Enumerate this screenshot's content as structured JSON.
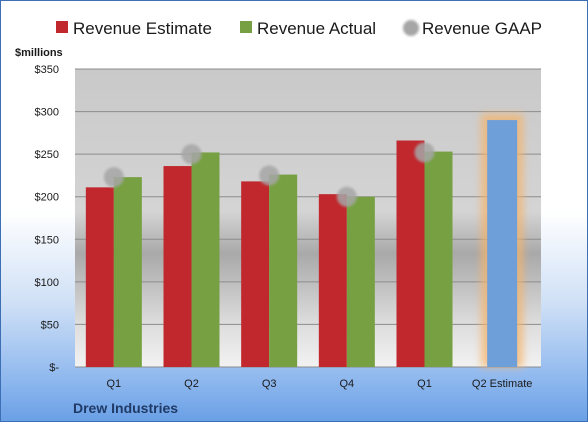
{
  "chart_data": {
    "type": "bar",
    "y_unit_label": "$millions",
    "categories": [
      "Q1",
      "Q2",
      "Q3",
      "Q4",
      "Q1",
      "Q2 Estimate"
    ],
    "ylim": [
      0,
      350
    ],
    "y_ticks": [
      0,
      50,
      100,
      150,
      200,
      250,
      300,
      350
    ],
    "y_tick_labels": [
      "$-",
      "$50",
      "$100",
      "$150",
      "$200",
      "$250",
      "$300",
      "$350"
    ],
    "grid": true,
    "legend_position": "top",
    "series": [
      {
        "name": "Revenue Estimate",
        "type": "bar",
        "color": "#c0282d",
        "values": [
          211,
          236,
          218,
          203,
          266,
          null
        ]
      },
      {
        "name": "Revenue Actual",
        "type": "bar",
        "color": "#77a043",
        "values": [
          223,
          252,
          226,
          200,
          253,
          null
        ]
      },
      {
        "name": "Revenue GAAP",
        "type": "marker",
        "color": "#a6a6a6",
        "values": [
          223,
          250,
          225,
          200,
          252,
          null
        ]
      }
    ],
    "forecast_bar": {
      "category_index": 5,
      "value": 290,
      "color": "#6f9fd8",
      "glow_color": "#f5b36a"
    },
    "company": "Drew Industries"
  }
}
